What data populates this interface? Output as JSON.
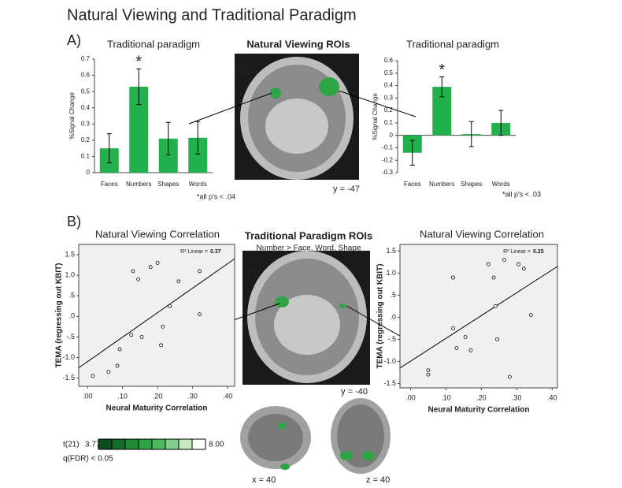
{
  "figure": {
    "title": "Natural Viewing and Traditional Paradigm",
    "panel_a": "A)",
    "panel_b": "B)",
    "roi_a_title": "Natural Viewing ROIs",
    "r_a": "R",
    "coord_a": "y = -47",
    "roi_b_title": "Traditional Paradigm ROIs",
    "roi_b_subtitle": "Number > Face, Word, Shape",
    "r_b": "R",
    "coord_b": "y = -40",
    "coord_x": "x = 40",
    "coord_z": "z = 40",
    "colorbar": {
      "label": "t(21)",
      "ticks": [
        3.77,
        {
          "value": 8,
          "label": "8.00"
        }
      ],
      "note": "q(FDR) < 0.05"
    }
  },
  "chart_data": [
    {
      "type": "bar",
      "title": "Traditional paradigm",
      "ylabel": "%Signal Change",
      "color": "#22b14c",
      "categories": [
        "Faces",
        "Numbers",
        "Shapes",
        "Words"
      ],
      "values": [
        0.15,
        0.53,
        0.21,
        0.215
      ],
      "errors": [
        0.09,
        0.11,
        0.1,
        0.1
      ],
      "ylim": [
        0,
        0.7
      ],
      "yticks": [
        0,
        0.1,
        0.2,
        0.3,
        0.4,
        0.5,
        0.6,
        0.7
      ],
      "star": "*",
      "star_category": "Numbers",
      "annotation": "*all p's < .04"
    },
    {
      "type": "bar",
      "title": "Traditional paradigm",
      "ylabel": "%Signal Change",
      "color": "#22b14c",
      "categories": [
        "Faces",
        "Numbers",
        "Shapes",
        "Words"
      ],
      "values": [
        -0.14,
        0.39,
        0.01,
        0.1
      ],
      "errors": [
        0.1,
        0.08,
        0.1,
        0.1
      ],
      "ylim": [
        -0.3,
        0.6
      ],
      "yticks": [
        -0.3,
        -0.2,
        -0.1,
        0,
        0.1,
        0.2,
        0.3,
        0.4,
        0.5,
        0.6
      ],
      "star": "*",
      "star_category": "Numbers",
      "annotation": "*all p's < .03"
    },
    {
      "type": "scatter",
      "title": "Natural Viewing Correlation",
      "xlabel": "Neural Maturity Correlation",
      "ylabel": "TEMA (regressing out KBIT)",
      "x": [
        0.015,
        0.06,
        0.085,
        0.092,
        0.125,
        0.13,
        0.145,
        0.155,
        0.18,
        0.2,
        0.21,
        0.215,
        0.235,
        0.26,
        0.32,
        0.32
      ],
      "values": [
        -1.45,
        -1.35,
        -1.2,
        -0.8,
        -0.45,
        1.1,
        0.9,
        -0.5,
        1.2,
        1.3,
        -0.7,
        -0.25,
        0.25,
        0.85,
        0.05,
        1.1
      ],
      "fit": {
        "x": [
          -0.025,
          0.42
        ],
        "y": [
          -1.25,
          1.4
        ]
      },
      "r2_label": "R² Linear =",
      "r2": 0.37,
      "xlim": [
        -0.025,
        0.42
      ],
      "ylim": [
        -1.7,
        1.75
      ],
      "xticks": [
        {
          "value": 0,
          "label": ".00"
        },
        {
          "value": 0.1,
          "label": ".10"
        },
        {
          "value": 0.2,
          "label": ".20"
        },
        {
          "value": 0.3,
          "label": ".30"
        },
        {
          "value": 0.4,
          "label": ".40"
        }
      ],
      "yticks": [
        -1.5,
        {
          "value": -1,
          "label": "-1.0"
        },
        {
          "value": -0.5,
          "label": "-.5"
        },
        {
          "value": 0,
          "label": ".0"
        },
        {
          "value": 0.5,
          "label": ".5"
        },
        {
          "value": 1,
          "label": "1.0"
        },
        1.5
      ]
    },
    {
      "type": "scatter",
      "title": "Natural Viewing Correlation",
      "xlabel": "Neural Maturity Correlation",
      "ylabel": "TEMA (regressing out KBIT)",
      "x": [
        0.05,
        0.05,
        0.12,
        0.12,
        0.13,
        0.155,
        0.17,
        0.22,
        0.235,
        0.24,
        0.245,
        0.265,
        0.28,
        0.305,
        0.32,
        0.34
      ],
      "values": [
        -1.2,
        -1.3,
        0.9,
        -0.25,
        -0.7,
        -0.45,
        -0.75,
        1.2,
        0.9,
        0.25,
        -0.5,
        1.3,
        -1.35,
        1.2,
        1.1,
        0.05
      ],
      "fit": {
        "x": [
          -0.03,
          0.415
        ],
        "y": [
          -1.15,
          1.15
        ]
      },
      "r2_label": "R² Linear =",
      "r2": 0.25,
      "xlim": [
        -0.03,
        0.415
      ],
      "ylim": [
        -1.6,
        1.65
      ],
      "xticks": [
        {
          "value": 0,
          "label": ".00"
        },
        {
          "value": 0.1,
          "label": ".10"
        },
        {
          "value": 0.2,
          "label": ".20"
        },
        {
          "value": 0.3,
          "label": ".30"
        },
        {
          "value": 0.4,
          "label": ".40"
        }
      ],
      "yticks": [
        -1.5,
        {
          "value": -1,
          "label": "-1.0"
        },
        {
          "value": -0.5,
          "label": "-.5"
        },
        {
          "value": 0,
          "label": ".0"
        },
        {
          "value": 0.5,
          "label": ".5"
        },
        {
          "value": 1,
          "label": "1.0"
        },
        1.5
      ]
    }
  ]
}
